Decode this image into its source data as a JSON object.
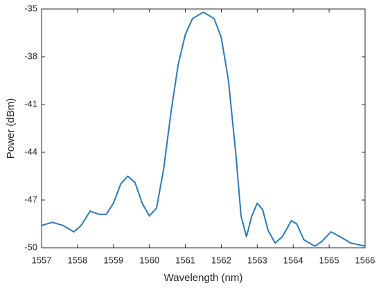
{
  "chart_data": {
    "type": "line",
    "xlabel": "Wavelength (nm)",
    "ylabel": "Power (dBm)",
    "color": "#2b78b8",
    "x": [
      1557,
      1557.3,
      1557.6,
      1557.9,
      1558.1,
      1558.35,
      1558.6,
      1558.8,
      1559.0,
      1559.2,
      1559.4,
      1559.6,
      1559.8,
      1560.0,
      1560.2,
      1560.4,
      1560.6,
      1560.8,
      1561.0,
      1561.2,
      1561.5,
      1561.8,
      1562.0,
      1562.2,
      1562.4,
      1562.55,
      1562.7,
      1562.85,
      1563.0,
      1563.15,
      1563.3,
      1563.5,
      1563.7,
      1563.95,
      1564.1,
      1564.3,
      1564.6,
      1564.8,
      1565.05,
      1565.3,
      1565.6,
      1566
    ],
    "values": [
      -48.6,
      -48.4,
      -48.6,
      -49.0,
      -48.6,
      -47.7,
      -47.9,
      -47.9,
      -47.2,
      -46.0,
      -45.5,
      -45.9,
      -47.2,
      -48.0,
      -47.5,
      -45.0,
      -41.5,
      -38.5,
      -36.6,
      -35.6,
      -35.2,
      -35.6,
      -36.8,
      -39.5,
      -44.0,
      -48.0,
      -49.3,
      -48.0,
      -47.2,
      -47.6,
      -48.9,
      -49.7,
      -49.3,
      -48.3,
      -48.5,
      -49.5,
      -49.9,
      -49.6,
      -49.0,
      -49.3,
      -49.7,
      -49.9
    ],
    "xlim": [
      1557,
      1566
    ],
    "xticks": [
      1557,
      1558,
      1559,
      1560,
      1561,
      1562,
      1563,
      1564,
      1565,
      1566
    ],
    "ylim": [
      -50,
      -35
    ],
    "yticks": [
      -50,
      -47,
      -44,
      -41,
      -38,
      -35
    ]
  }
}
